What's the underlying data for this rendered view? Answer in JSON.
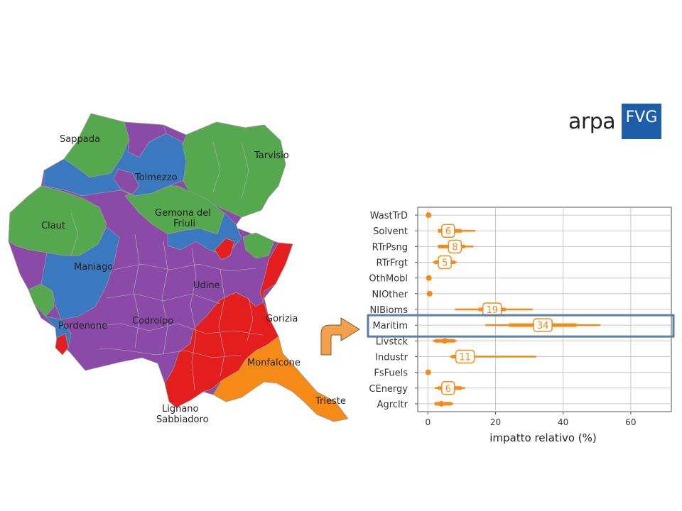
{
  "logo": {
    "word": "arpa",
    "box_text": "FVG"
  },
  "map": {
    "places": [
      "Sappada",
      "Tarvisio",
      "Tolmezzo",
      "Gemona del Friuli",
      "Claut",
      "Maniago",
      "Udine",
      "Pordenone",
      "Codroipo",
      "Gorizia",
      "Monfalcone",
      "Lignano Sabbiadoro",
      "Trieste"
    ],
    "colors": {
      "green": "#55a84d",
      "blue": "#3a78c0",
      "purple": "#8b4aa8",
      "red": "#e41e1e",
      "orange": "#f58a16"
    }
  },
  "chart_data": {
    "type": "interval",
    "categories": [
      "WastTrD",
      "Solvent",
      "RTrPsng",
      "RTrFrgt",
      "OthMobl",
      "NIOther",
      "NIBioms",
      "Maritim",
      "Livstck",
      "Industr",
      "FsFuels",
      "CEnergy",
      "Agrcltr"
    ],
    "center": [
      0.2,
      6,
      8,
      5,
      0.3,
      0.5,
      19,
      34,
      5,
      11,
      0.1,
      6,
      4
    ],
    "center_labels": [
      "",
      "6",
      "8",
      "5",
      "",
      "",
      "19",
      "34",
      "",
      "11",
      "",
      "6",
      ""
    ],
    "inner_low": [
      0.2,
      3,
      3,
      2,
      0.3,
      0.5,
      15,
      24,
      2,
      7,
      0.1,
      3,
      2
    ],
    "inner_high": [
      0.2,
      10,
      11,
      8,
      0.3,
      0.5,
      23,
      44,
      8,
      13,
      0.1,
      10,
      7
    ],
    "outer_low": [
      0.2,
      3,
      3,
      1.5,
      0.3,
      0.5,
      8,
      17,
      1.5,
      6.5,
      0.1,
      2,
      2
    ],
    "outer_high": [
      0.2,
      14,
      13.5,
      8.5,
      0.3,
      0.5,
      31,
      51,
      8.5,
      32,
      0.1,
      11,
      7.5
    ],
    "highlight": "Maritim",
    "xlabel": "impatto relativo (%)",
    "ylabel": "",
    "xlim": [
      -3,
      72
    ],
    "xticks": [
      0,
      20,
      40,
      60
    ],
    "grid": true,
    "color": "#f58a16",
    "highlight_color": "#5b7fa6"
  }
}
